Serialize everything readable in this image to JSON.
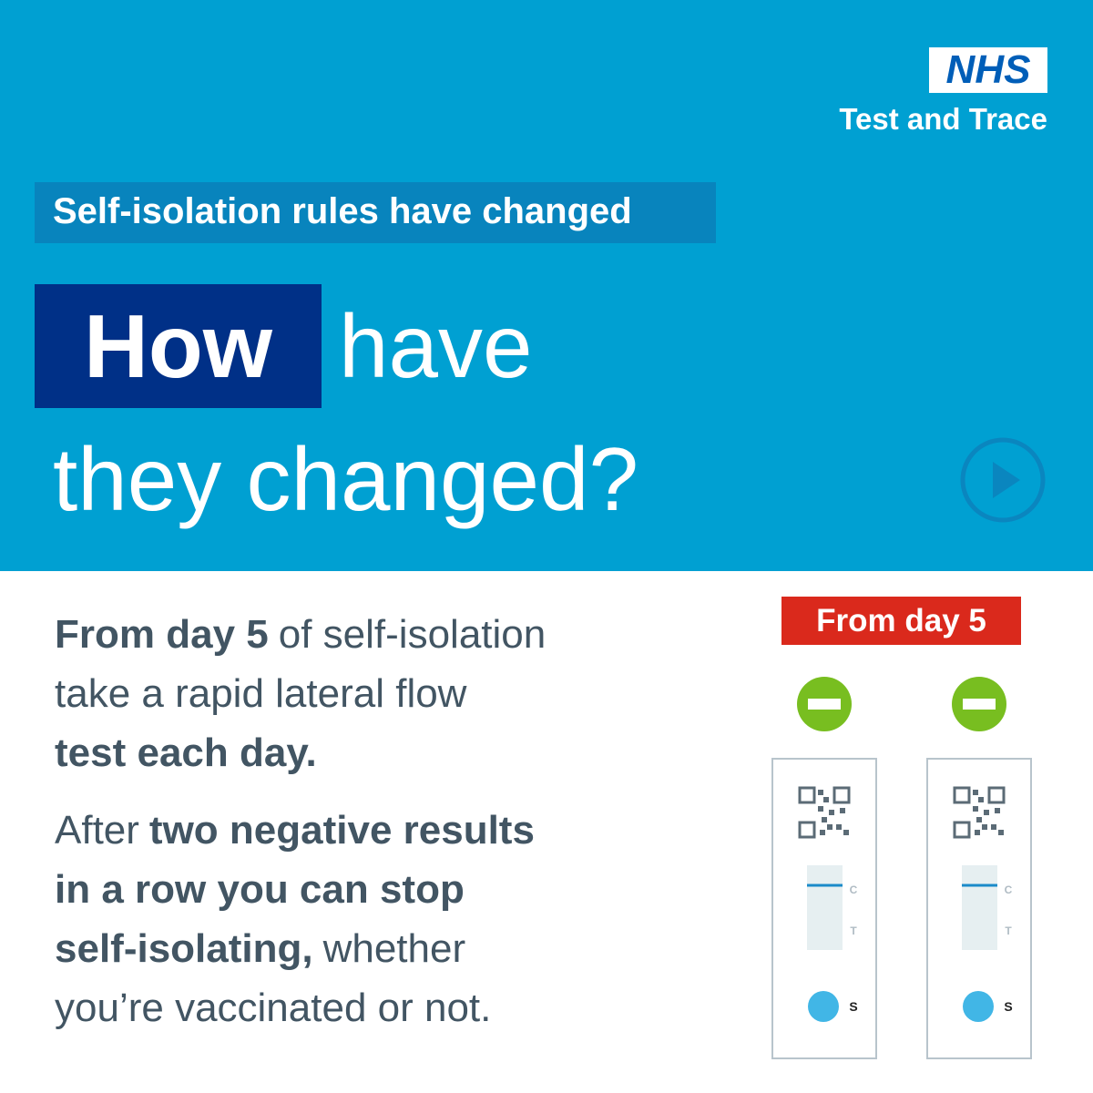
{
  "logo": {
    "mark": "NHS",
    "service": "Test and Trace"
  },
  "banner": "Self-isolation rules have changed",
  "headline": {
    "highlight": "How",
    "rest": "have",
    "line2": "they changed?"
  },
  "body": {
    "paragraph1": [
      [
        {
          "text": "From day 5",
          "bold": true
        },
        {
          "text": "of self-isolation",
          "bold": false
        }
      ],
      [
        {
          "text": "take a rapid lateral flow",
          "bold": false
        }
      ],
      [
        {
          "text": "test each day.",
          "bold": true
        }
      ]
    ],
    "paragraph2": [
      [
        {
          "text": "After",
          "bold": false
        },
        {
          "text": "two negative results",
          "bold": true
        }
      ],
      [
        {
          "text": "in a row you can stop",
          "bold": true
        }
      ],
      [
        {
          "text": "self-isolating,",
          "bold": true
        },
        {
          "text": "whether",
          "bold": false
        }
      ],
      [
        {
          "text": "you’re vaccinated or not.",
          "bold": false
        }
      ]
    ]
  },
  "illustration": {
    "badge": "From day 5",
    "tests": [
      {
        "c": "C",
        "t": "T",
        "s": "S"
      },
      {
        "c": "C",
        "t": "T",
        "s": "S"
      }
    ]
  }
}
